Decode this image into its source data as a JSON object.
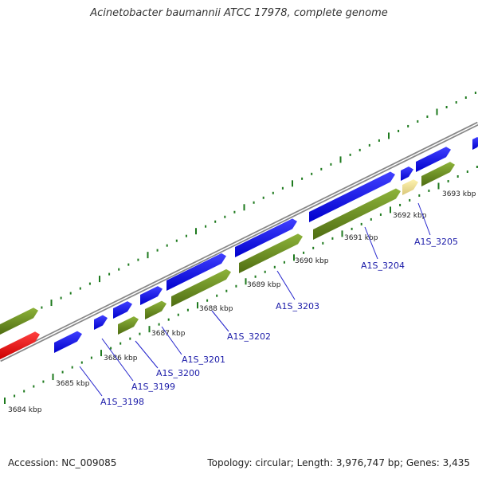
{
  "title": "Acinetobacter baumannii ATCC 17978, complete genome",
  "footer": {
    "accession": "Accession: NC_009085",
    "summary": "Topology: circular; Length: 3,976,747 bp; Genes: 3,435"
  },
  "colors": {
    "backbone": "#999999",
    "cds": "#0000ee",
    "gene": "#6b8e23",
    "rna": "#f0e68c",
    "highlight": "#ff0000",
    "tick": "#1e7a1e",
    "label": "#1a1aa8"
  },
  "ticks": [
    "3684 kbp",
    "3685 kbp",
    "3686 kbp",
    "3687 kbp",
    "3688 kbp",
    "3689 kbp",
    "3690 kbp",
    "3691 kbp",
    "3692 kbp",
    "3693 kbp"
  ],
  "gene_labels": [
    "A1S_3198",
    "A1S_3199",
    "A1S_3200",
    "A1S_3201",
    "A1S_3202",
    "A1S_3203",
    "A1S_3204",
    "A1S_3205"
  ]
}
